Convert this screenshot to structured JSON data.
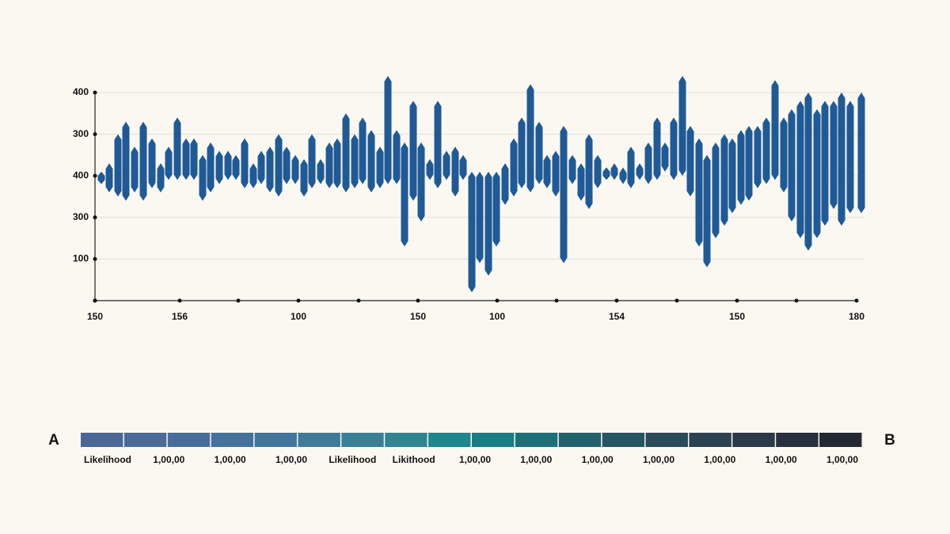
{
  "chart_data": {
    "type": "range_bar",
    "color": "#1f5a96",
    "xlim": [
      0,
      962
    ],
    "xticks": [
      {
        "value": 0,
        "label": "150"
      },
      {
        "value": 107,
        "label": "156"
      },
      {
        "value": 181,
        "label": null
      },
      {
        "value": 257,
        "label": "100"
      },
      {
        "value": 333,
        "label": null
      },
      {
        "value": 408,
        "label": "150"
      },
      {
        "value": 508,
        "label": "100"
      },
      {
        "value": 583,
        "label": null
      },
      {
        "value": 659,
        "label": "154"
      },
      {
        "value": 735,
        "label": null
      },
      {
        "value": 811,
        "label": "150"
      },
      {
        "value": 886,
        "label": null
      },
      {
        "value": 962,
        "label": "180"
      }
    ],
    "ylim": [
      0,
      5
    ],
    "yticks": [
      {
        "value": 0,
        "label": null
      },
      {
        "value": 1,
        "label": "100"
      },
      {
        "value": 2,
        "label": "300"
      },
      {
        "value": 3,
        "label": "400"
      },
      {
        "value": 4,
        "label": "300"
      },
      {
        "value": 5,
        "label": "400"
      }
    ],
    "grid": true,
    "x": [
      8,
      18,
      29,
      39,
      50,
      61,
      72,
      83,
      93,
      104,
      115,
      125,
      136,
      146,
      157,
      168,
      178,
      189,
      200,
      210,
      221,
      232,
      242,
      253,
      264,
      274,
      285,
      296,
      306,
      317,
      328,
      338,
      349,
      360,
      370,
      381,
      391,
      402,
      412,
      423,
      433,
      444,
      455,
      465,
      476,
      486,
      497,
      507,
      518,
      529,
      539,
      550,
      561,
      571,
      582,
      592,
      603,
      614,
      624,
      635,
      646,
      656,
      667,
      677,
      688,
      699,
      710,
      720,
      731,
      742,
      752,
      763,
      773,
      784,
      795,
      805,
      816,
      826,
      837,
      848,
      859,
      870,
      880,
      891,
      901,
      912,
      922,
      933,
      943,
      954,
      968
    ],
    "high": [
      3.1,
      3.3,
      4.0,
      4.3,
      3.7,
      4.3,
      3.9,
      3.3,
      3.7,
      4.4,
      3.9,
      3.9,
      3.5,
      3.8,
      3.6,
      3.6,
      3.5,
      3.9,
      3.3,
      3.6,
      3.7,
      4.0,
      3.7,
      3.5,
      3.4,
      4.0,
      3.4,
      3.8,
      3.9,
      4.5,
      4.0,
      4.4,
      4.1,
      3.7,
      5.4,
      4.1,
      3.8,
      4.8,
      3.8,
      3.4,
      4.8,
      3.6,
      3.7,
      3.5,
      3.1,
      3.1,
      3.1,
      3.1,
      3.3,
      3.9,
      4.4,
      5.2,
      4.3,
      3.5,
      3.6,
      4.2,
      3.5,
      3.3,
      4.0,
      3.5,
      3.2,
      3.3,
      3.2,
      3.7,
      3.3,
      3.8,
      4.4,
      3.8,
      4.4,
      5.4,
      4.2,
      3.9,
      3.5,
      3.8,
      4.0,
      3.9,
      4.1,
      4.2,
      4.2,
      4.4,
      5.3,
      4.4,
      4.6,
      4.8,
      5.0,
      4.6,
      4.8,
      4.8,
      5.0,
      4.8,
      5.0
    ],
    "low": [
      2.8,
      2.6,
      2.5,
      2.4,
      2.6,
      2.4,
      2.7,
      2.6,
      2.9,
      2.9,
      2.9,
      2.9,
      2.4,
      2.6,
      2.8,
      2.9,
      2.9,
      2.7,
      2.7,
      2.8,
      2.6,
      2.5,
      2.8,
      2.8,
      2.5,
      2.7,
      2.8,
      2.7,
      2.7,
      2.6,
      2.7,
      2.8,
      2.6,
      2.7,
      2.8,
      2.8,
      1.3,
      2.4,
      1.9,
      2.9,
      2.7,
      2.9,
      2.5,
      2.9,
      0.2,
      0.9,
      0.6,
      1.3,
      2.3,
      2.5,
      2.7,
      2.6,
      2.8,
      2.7,
      2.5,
      0.9,
      2.8,
      2.4,
      2.2,
      2.7,
      2.9,
      2.9,
      2.8,
      2.7,
      2.9,
      2.8,
      2.9,
      3.1,
      2.9,
      3.0,
      2.5,
      1.3,
      0.8,
      1.5,
      1.8,
      2.1,
      2.3,
      2.4,
      2.7,
      2.8,
      2.9,
      2.6,
      1.9,
      1.5,
      1.2,
      1.5,
      1.8,
      2.2,
      1.8,
      2.1,
      2.1
    ]
  },
  "color_scale": {
    "start_label": "A",
    "end_label": "B",
    "colors": [
      "#4a6795",
      "#4a6a98",
      "#476e9a",
      "#44729b",
      "#42769b",
      "#3f7a99",
      "#3a8095",
      "#2e8590",
      "#1f868c",
      "#1b7c84",
      "#1d6f78",
      "#22626c",
      "#265662",
      "#2a4b58",
      "#2b4250",
      "#2b3948",
      "#28303d",
      "#232833"
    ],
    "labels": [
      "Likelihood",
      "1,00,00",
      "1,00,00",
      "1,00,00",
      "Likelihood",
      "Likithood",
      "1,00,00",
      "1,00,00",
      "1,00,00",
      "1,00,00",
      "1,00,00",
      "1,00,00",
      "1,00,00"
    ]
  }
}
